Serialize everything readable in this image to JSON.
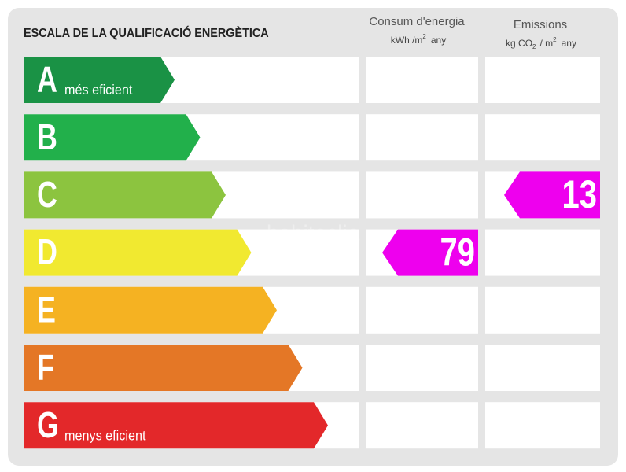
{
  "title": "ESCALA DE LA QUALIFICACIÓ ENERGÈTICA",
  "columns": [
    {
      "title": "Consum d'energia",
      "unit": [
        "kWh /m",
        "2",
        "any"
      ]
    },
    {
      "title": "Emissions",
      "unit": [
        "kg CO",
        "2",
        "/ m",
        "2",
        "any"
      ]
    }
  ],
  "rows": [
    {
      "letter": "A",
      "label": "més eficient",
      "color": "#1a9245"
    },
    {
      "letter": "B",
      "color": "#22b04b"
    },
    {
      "letter": "C",
      "color": "#8cc43f"
    },
    {
      "letter": "D",
      "color": "#f1e930"
    },
    {
      "letter": "E",
      "color": "#f5b222"
    },
    {
      "letter": "F",
      "color": "#e47726"
    },
    {
      "letter": "G",
      "label": "menys eficient",
      "color": "#e3282a"
    }
  ],
  "ratings": [
    {
      "class": "D",
      "value": 79,
      "color": "#ee00ee"
    },
    {
      "class": "C",
      "value": 13,
      "color": "#ee00ee"
    }
  ],
  "watermark": "habitaclia"
}
